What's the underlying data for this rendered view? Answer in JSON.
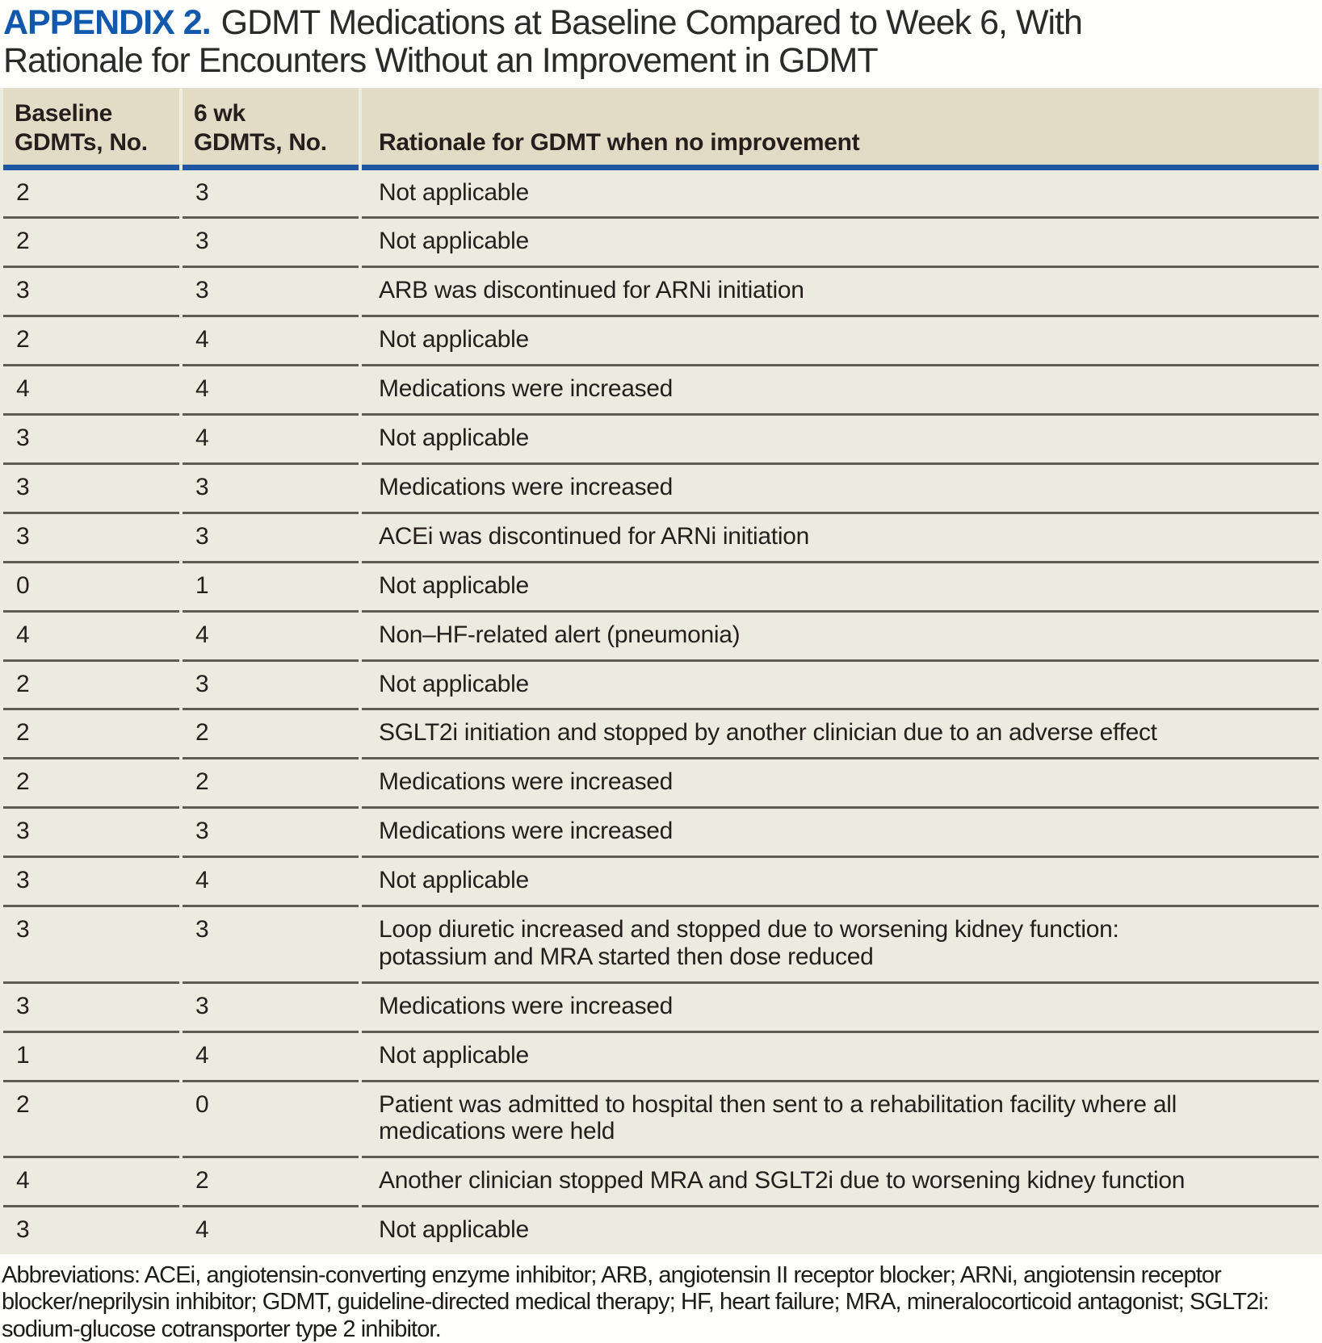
{
  "title": {
    "label": "APPENDIX 2.",
    "text": "GDMT Medications at Baseline Compared to Week 6, With\nRationale for Encounters Without an Improvement in GDMT"
  },
  "colors": {
    "accent_blue_rule": "#1f56a4",
    "title_blue": "#1259ae",
    "header_bg": "#e2dcc7",
    "row_bg": "#ecebdf",
    "divider": "#5d5c52"
  },
  "table": {
    "headers": [
      "Baseline\nGDMTs, No.",
      "6 wk\nGDMTs, No.",
      "Rationale for GDMT when no improvement"
    ],
    "rows": [
      {
        "baseline": "2",
        "week6": "3",
        "rationale": "Not applicable"
      },
      {
        "baseline": "2",
        "week6": "3",
        "rationale": "Not applicable"
      },
      {
        "baseline": "3",
        "week6": "3",
        "rationale": "ARB was discontinued for ARNi initiation"
      },
      {
        "baseline": "2",
        "week6": "4",
        "rationale": "Not applicable"
      },
      {
        "baseline": "4",
        "week6": "4",
        "rationale": "Medications were increased"
      },
      {
        "baseline": "3",
        "week6": "4",
        "rationale": "Not applicable"
      },
      {
        "baseline": "3",
        "week6": "3",
        "rationale": "Medications were increased"
      },
      {
        "baseline": "3",
        "week6": "3",
        "rationale": "ACEi was discontinued for ARNi initiation"
      },
      {
        "baseline": "0",
        "week6": "1",
        "rationale": "Not applicable"
      },
      {
        "baseline": "4",
        "week6": "4",
        "rationale": "Non–HF-related alert (pneumonia)"
      },
      {
        "baseline": "2",
        "week6": "3",
        "rationale": "Not applicable"
      },
      {
        "baseline": "2",
        "week6": "2",
        "rationale": "SGLT2i initiation and stopped by another clinician due to an adverse effect"
      },
      {
        "baseline": "2",
        "week6": "2",
        "rationale": "Medications were increased"
      },
      {
        "baseline": "3",
        "week6": "3",
        "rationale": "Medications were increased"
      },
      {
        "baseline": "3",
        "week6": "4",
        "rationale": "Not applicable"
      },
      {
        "baseline": "3",
        "week6": "3",
        "rationale": "Loop diuretic increased and stopped due to worsening kidney function:\npotassium and MRA started then dose reduced"
      },
      {
        "baseline": "3",
        "week6": "3",
        "rationale": "Medications were increased"
      },
      {
        "baseline": "1",
        "week6": "4",
        "rationale": "Not applicable"
      },
      {
        "baseline": "2",
        "week6": "0",
        "rationale": "Patient was admitted to hospital then sent to a rehabilitation facility where all\nmedications were held"
      },
      {
        "baseline": "4",
        "week6": "2",
        "rationale": "Another clinician stopped MRA and SGLT2i due to worsening kidney function"
      },
      {
        "baseline": "3",
        "week6": "4",
        "rationale": "Not applicable"
      }
    ]
  },
  "footnote": "Abbreviations: ACEi, angiotensin-converting enzyme inhibitor; ARB, angiotensin II receptor blocker; ARNi, angiotensin receptor blocker/neprilysin inhibitor; GDMT, guideline-directed medical therapy; HF, heart failure; MRA, mineralocorticoid antagonist; SGLT2i: sodium-glucose cotransporter type 2 inhibitor."
}
